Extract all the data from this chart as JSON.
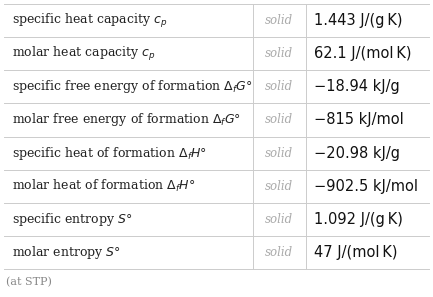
{
  "rows": [
    [
      "specific heat capacity $c_p$",
      "solid",
      "1.443 J/(g K)"
    ],
    [
      "molar heat capacity $c_p$",
      "solid",
      "62.1 J/(mol K)"
    ],
    [
      "specific free energy of formation $\\Delta_f G°$",
      "solid",
      "−18.94 kJ/g"
    ],
    [
      "molar free energy of formation $\\Delta_f G°$",
      "solid",
      "−815 kJ/mol"
    ],
    [
      "specific heat of formation $\\Delta_f H°$",
      "solid",
      "−20.98 kJ/g"
    ],
    [
      "molar heat of formation $\\Delta_f H°$",
      "solid",
      "−902.5 kJ/mol"
    ],
    [
      "specific entropy $S°$",
      "solid",
      "1.092 J/(g K)"
    ],
    [
      "molar entropy $S°$",
      "solid",
      "47 J/(mol K)"
    ]
  ],
  "footer": "(at STP)",
  "col2_color": "#aaaaaa",
  "bg_color": "#ffffff",
  "line_color": "#cccccc",
  "text_color": "#222222",
  "value_color": "#111111",
  "font_size": 9.0,
  "value_font_size": 10.5,
  "col2_font_size": 8.5,
  "footer_color": "#888888",
  "footer_fontsize": 8.0
}
